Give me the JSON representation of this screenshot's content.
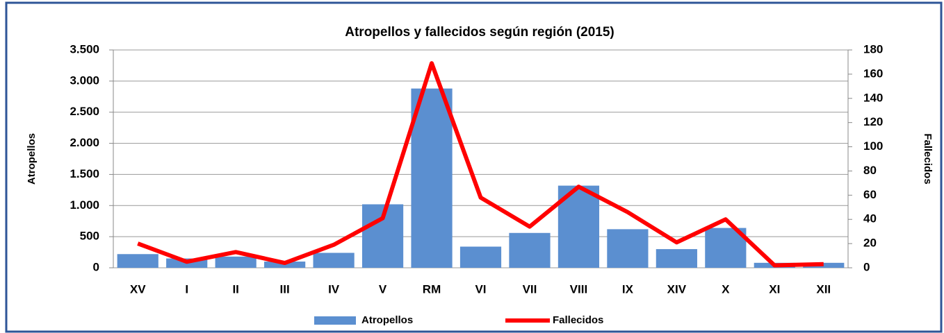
{
  "chart_data": {
    "type": "bar_line",
    "title": "Atropellos y fallecidos según región (2015)",
    "y_label": "Atropellos",
    "y2_label": "Fallecidos",
    "categories": [
      "XV",
      "I",
      "II",
      "III",
      "IV",
      "V",
      "RM",
      "VI",
      "VII",
      "VIII",
      "IX",
      "XIV",
      "X",
      "XI",
      "XII"
    ],
    "series": [
      {
        "name": "Atropellos",
        "type": "bar",
        "color": "#5b8fd0",
        "values": [
          220,
          150,
          180,
          100,
          240,
          1020,
          2880,
          340,
          560,
          1320,
          620,
          300,
          640,
          80,
          80
        ]
      },
      {
        "name": "Fallecidos",
        "type": "line",
        "color": "#ff0000",
        "axis": "y2",
        "values": [
          20,
          5,
          13,
          4,
          19,
          41,
          169,
          58,
          34,
          67,
          46,
          21,
          40,
          2,
          3
        ]
      }
    ],
    "ylim": [
      0,
      3500
    ],
    "yticks": [
      0,
      {
        "value": 500,
        "label": "500"
      },
      {
        "value": 1000,
        "label": "1.000"
      },
      {
        "value": 1500,
        "label": "1.500"
      },
      {
        "value": 2000,
        "label": "2.000"
      },
      {
        "value": 2500,
        "label": "2.500"
      },
      {
        "value": 3000,
        "label": "3.000"
      },
      {
        "value": 3500,
        "label": "3.500"
      }
    ],
    "y2lim": [
      0,
      180
    ],
    "y2ticks": [
      0,
      20,
      40,
      60,
      80,
      100,
      120,
      140,
      160,
      180
    ],
    "grid": true
  }
}
